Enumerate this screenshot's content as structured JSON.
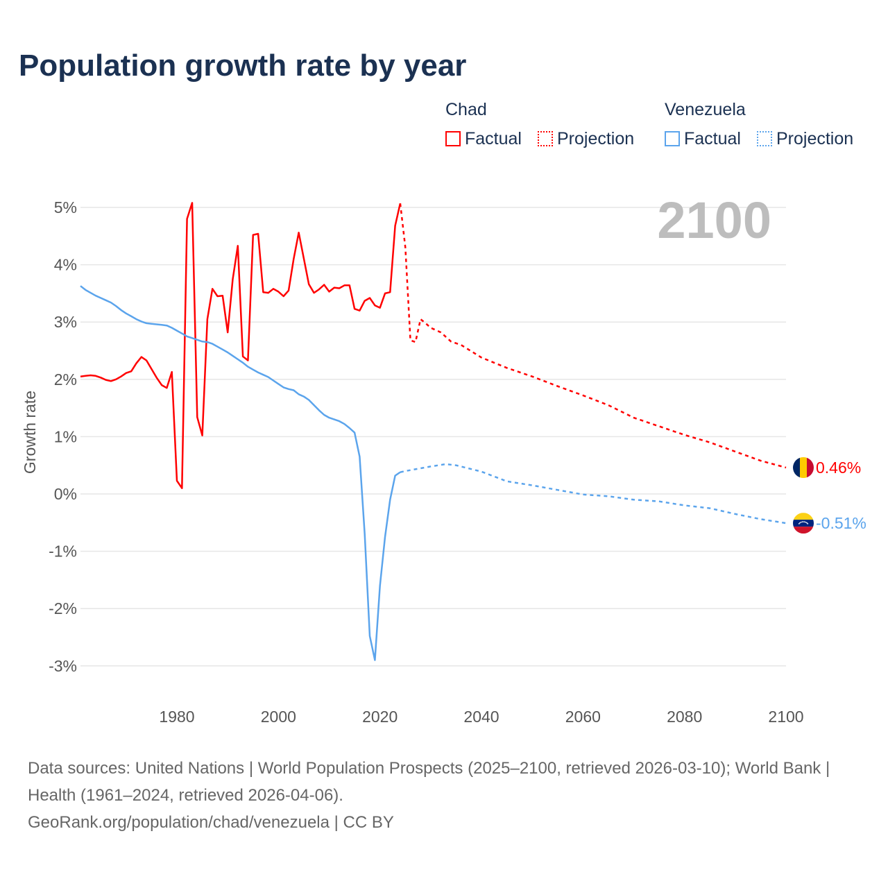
{
  "title": "Population growth rate by year",
  "legend": {
    "groups": [
      {
        "name": "Chad",
        "color": "#ff0000",
        "factual": "Factual",
        "projection": "Projection"
      },
      {
        "name": "Venezuela",
        "color": "#5ba4ec",
        "factual": "Factual",
        "projection": "Projection"
      }
    ]
  },
  "year_label": "2100",
  "footer": {
    "sources": "Data sources: United Nations | World Population Prospects (2025–2100, retrieved 2026-03-10); World Bank | Health (1961–2024, retrieved 2026-04-06).",
    "attribution": "GeoRank.org/population/chad/venezuela | CC BY"
  },
  "chart_data": {
    "type": "line",
    "title": "Population growth rate by year",
    "xlabel": "",
    "ylabel": "Growth rate",
    "xlim": [
      1961,
      2100
    ],
    "ylim": [
      -3.5,
      5.2
    ],
    "xticks": [
      1980,
      2000,
      2020,
      2040,
      2060,
      2080,
      2100
    ],
    "xtick_labels": [
      "1980",
      "2000",
      "2020",
      "2040",
      "2060",
      "2080",
      "2100"
    ],
    "yticks": [
      5,
      4,
      3,
      2,
      1,
      0,
      -1,
      -2,
      -3
    ],
    "ytick_labels": [
      "5%",
      "4%",
      "3%",
      "2%",
      "1%",
      "0%",
      "-1%",
      "-2%",
      "-3%"
    ],
    "grid": true,
    "legend_position": "top-right",
    "series": [
      {
        "name": "Chad Factual",
        "country": "Chad",
        "style": "solid",
        "color": "#ff0000",
        "x_start": 1961,
        "values": [
          2.05,
          2.06,
          2.07,
          2.06,
          2.03,
          1.99,
          1.97,
          2.0,
          2.05,
          2.11,
          2.14,
          2.28,
          2.39,
          2.33,
          2.18,
          2.03,
          1.9,
          1.85,
          2.13,
          0.23,
          0.1,
          4.8,
          5.08,
          1.34,
          1.02,
          3.05,
          3.58,
          3.45,
          3.46,
          2.82,
          3.75,
          4.33,
          2.4,
          2.33,
          4.52,
          4.54,
          3.52,
          3.51,
          3.58,
          3.53,
          3.45,
          3.55,
          4.1,
          4.56,
          4.11,
          3.66,
          3.51,
          3.57,
          3.65,
          3.53,
          3.6,
          3.59,
          3.64,
          3.64,
          3.23,
          3.2,
          3.37,
          3.42,
          3.29,
          3.25,
          3.5,
          3.52,
          4.68,
          5.07
        ]
      },
      {
        "name": "Chad Projection",
        "country": "Chad",
        "style": "dotted",
        "color": "#ff0000",
        "x": [
          2024,
          2025,
          2026,
          2027,
          2028,
          2029,
          2030,
          2032,
          2034,
          2036,
          2040,
          2045,
          2050,
          2055,
          2060,
          2065,
          2070,
          2075,
          2080,
          2085,
          2090,
          2095,
          2100
        ],
        "values": [
          5.07,
          4.3,
          2.68,
          2.65,
          3.05,
          2.98,
          2.9,
          2.82,
          2.66,
          2.6,
          2.38,
          2.2,
          2.05,
          1.88,
          1.72,
          1.55,
          1.33,
          1.18,
          1.03,
          0.9,
          0.74,
          0.58,
          0.46
        ]
      },
      {
        "name": "Venezuela Factual",
        "country": "Venezuela",
        "style": "solid",
        "color": "#5ba4ec",
        "x_start": 1961,
        "values": [
          3.63,
          3.56,
          3.51,
          3.46,
          3.42,
          3.38,
          3.34,
          3.28,
          3.21,
          3.15,
          3.1,
          3.05,
          3.01,
          2.98,
          2.97,
          2.96,
          2.95,
          2.94,
          2.9,
          2.85,
          2.8,
          2.75,
          2.72,
          2.69,
          2.66,
          2.65,
          2.62,
          2.57,
          2.52,
          2.47,
          2.41,
          2.35,
          2.29,
          2.22,
          2.17,
          2.12,
          2.08,
          2.04,
          1.98,
          1.92,
          1.86,
          1.83,
          1.81,
          1.74,
          1.7,
          1.64,
          1.55,
          1.46,
          1.38,
          1.33,
          1.3,
          1.27,
          1.22,
          1.15,
          1.07,
          0.65,
          -0.7,
          -2.48,
          -2.9,
          -1.6,
          -0.75,
          -0.1,
          0.32,
          0.38
        ]
      },
      {
        "name": "Venezuela Projection",
        "country": "Venezuela",
        "style": "dotted",
        "color": "#5ba4ec",
        "x": [
          2024,
          2025,
          2030,
          2033,
          2035,
          2040,
          2045,
          2050,
          2055,
          2060,
          2065,
          2070,
          2075,
          2080,
          2085,
          2090,
          2095,
          2100
        ],
        "values": [
          0.38,
          0.4,
          0.48,
          0.52,
          0.5,
          0.39,
          0.22,
          0.15,
          0.07,
          -0.01,
          -0.04,
          -0.1,
          -0.13,
          -0.2,
          -0.25,
          -0.35,
          -0.44,
          -0.51
        ]
      }
    ],
    "end_labels": [
      {
        "country": "Chad",
        "text": "0.46%",
        "value": 0.46,
        "color": "#ff0000"
      },
      {
        "country": "Venezuela",
        "text": "-0.51%",
        "value": -0.51,
        "color": "#5ba4ec"
      }
    ]
  }
}
